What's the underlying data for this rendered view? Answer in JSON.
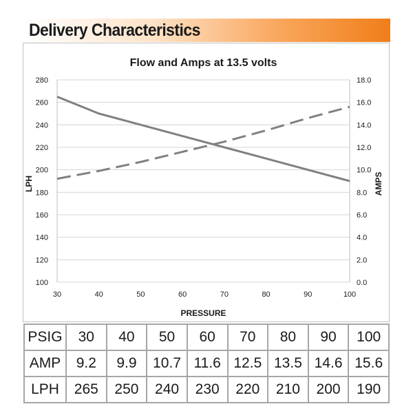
{
  "header": {
    "title": "Delivery Characteristics"
  },
  "chart_data": {
    "type": "line",
    "title": "Flow and Amps at 13.5 volts",
    "xlabel": "PRESSURE",
    "ylabel": "LPH",
    "y2label": "AMPS",
    "x": [
      30,
      40,
      50,
      60,
      70,
      80,
      90,
      100
    ],
    "xlim": [
      30,
      100
    ],
    "xticks": [
      "30",
      "40",
      "50",
      "60",
      "70",
      "80",
      "90",
      "100"
    ],
    "ylim": [
      100,
      280
    ],
    "yticks": [
      "100",
      "120",
      "140",
      "160",
      "180",
      "200",
      "220",
      "240",
      "260",
      "280"
    ],
    "y2lim": [
      0,
      18
    ],
    "y2ticks": [
      "0.0",
      "2.0",
      "4.0",
      "6.0",
      "8.0",
      "10.0",
      "12.0",
      "14.0",
      "16.0",
      "18.0"
    ],
    "grid": true,
    "legend": "none",
    "series": [
      {
        "values": [
          265,
          250,
          240,
          230,
          220,
          210,
          200,
          190
        ],
        "axis": "left",
        "style": "solid",
        "color": "#808080"
      },
      {
        "values": [
          9.2,
          9.9,
          10.7,
          11.6,
          12.5,
          13.5,
          14.6,
          15.6
        ],
        "axis": "right",
        "style": "dashed",
        "color": "#808080"
      }
    ]
  },
  "table": {
    "rows": [
      {
        "label": "PSIG",
        "values": [
          "30",
          "40",
          "50",
          "60",
          "70",
          "80",
          "90",
          "100"
        ]
      },
      {
        "label": "AMP",
        "values": [
          "9.2",
          "9.9",
          "10.7",
          "11.6",
          "12.5",
          "13.5",
          "14.6",
          "15.6"
        ]
      },
      {
        "label": "LPH",
        "values": [
          "265",
          "250",
          "240",
          "230",
          "220",
          "210",
          "200",
          "190"
        ]
      }
    ]
  }
}
